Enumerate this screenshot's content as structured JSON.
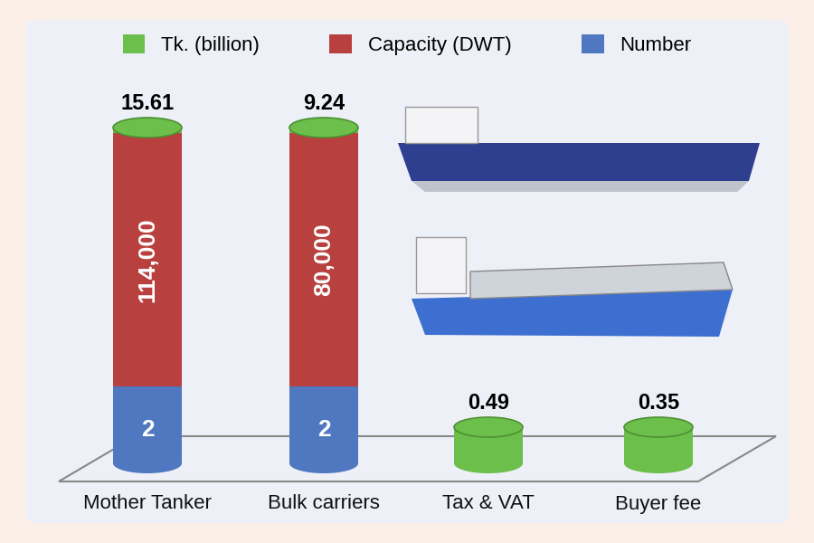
{
  "chart_data": {
    "type": "bar",
    "stacked": true,
    "data_labels": true,
    "tick_labels": "x",
    "legend": "top",
    "categories": [
      "Mother Tanker",
      "Bulk carriers",
      "Tax & VAT",
      "Buyer fee"
    ],
    "series": [
      {
        "name": "Tk. (billion)",
        "color": "#6cbf4a",
        "values": [
          15.61,
          9.24,
          0.49,
          0.35
        ]
      },
      {
        "name": "Capacity (DWT)",
        "color": "#b8413f",
        "values": [
          114000,
          80000,
          null,
          null
        ],
        "value_labels": [
          "114,000",
          "80,000",
          null,
          null
        ]
      },
      {
        "name": "Number",
        "color": "#4f78c0",
        "values": [
          2,
          2,
          null,
          null
        ]
      }
    ]
  }
}
